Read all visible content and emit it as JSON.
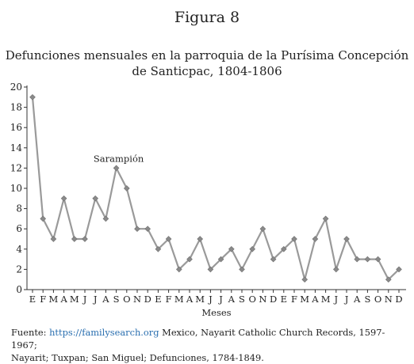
{
  "figure_label": "Figura 8",
  "chart_data": {
    "type": "line",
    "title_line1": "Defunciones mensuales en la parroquia de la Purísima Concepción",
    "title_line2": "de Santicpac, 1804-1806",
    "xlabel": "Meses",
    "ylabel": "",
    "ylim": [
      0,
      20
    ],
    "yticks": [
      0,
      2,
      4,
      6,
      8,
      10,
      12,
      14,
      16,
      18,
      20
    ],
    "grid": false,
    "categories": [
      "E",
      "F",
      "M",
      "A",
      "M",
      "J",
      "J",
      "A",
      "S",
      "O",
      "N",
      "D",
      "E",
      "F",
      "M",
      "A",
      "M",
      "J",
      "J",
      "A",
      "S",
      "O",
      "N",
      "D",
      "E",
      "F",
      "M",
      "A",
      "M",
      "J",
      "J",
      "A",
      "S",
      "O",
      "N",
      "D"
    ],
    "series": [
      {
        "values": [
          19,
          7,
          5,
          9,
          5,
          5,
          9,
          7,
          12,
          10,
          6,
          6,
          4,
          5,
          2,
          3,
          5,
          2,
          3,
          4,
          2,
          4,
          6,
          3,
          4,
          5,
          1,
          5,
          7,
          2,
          5,
          3,
          3,
          3,
          1,
          2
        ]
      }
    ],
    "annotations": [
      {
        "text": "Sarampión",
        "point_index": 8
      }
    ],
    "colors": {
      "line": "#9a9a9a",
      "marker": "#8a8a8a",
      "axis": "#333333"
    }
  },
  "source": {
    "prefix": "Fuente: ",
    "link_text": "https://familysearch.org",
    "line1_rest": " Mexico, Nayarit Catholic Church Records, 1597-1967;",
    "line2": "Nayarit; Tuxpan; San Miguel; Defunciones, 1784-1849."
  }
}
